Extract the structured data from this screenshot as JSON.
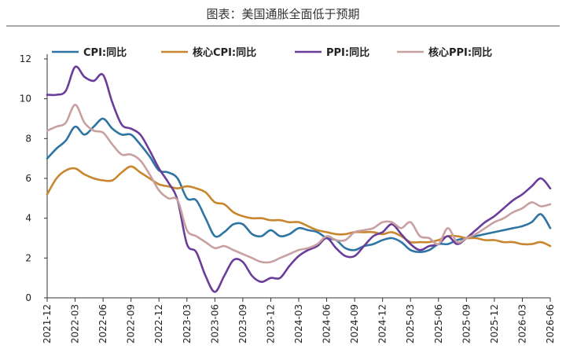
{
  "chart_data": {
    "type": "line",
    "title": "图表：美国通胀全面低于预期",
    "xlabel": "",
    "ylabel": "",
    "ylim": [
      0,
      12
    ],
    "yticks": [
      0,
      2,
      4,
      6,
      8,
      10,
      12
    ],
    "xlim": [
      "2021-12",
      "2026-06"
    ],
    "x_tick_labels": [
      "2021-12",
      "2022-03",
      "2022-06",
      "2022-09",
      "2022-12",
      "2023-03",
      "2023-06",
      "2023-09",
      "2023-12",
      "2024-03",
      "2024-06",
      "2024-09",
      "2024-12",
      "2025-03",
      "2025-06",
      "2025-09",
      "2025-12",
      "2026-03",
      "2026-06"
    ],
    "grid": false,
    "legend_position": "top",
    "series": [
      {
        "name": "CPI:同比",
        "color": "#2e75a3",
        "points": [
          [
            "2021-12",
            7.0
          ],
          [
            "2022-01",
            7.5
          ],
          [
            "2022-02",
            7.9
          ],
          [
            "2022-03",
            8.6
          ],
          [
            "2022-04",
            8.2
          ],
          [
            "2022-05",
            8.6
          ],
          [
            "2022-06",
            9.0
          ],
          [
            "2022-07",
            8.5
          ],
          [
            "2022-08",
            8.2
          ],
          [
            "2022-09",
            8.2
          ],
          [
            "2022-10",
            7.7
          ],
          [
            "2022-11",
            7.1
          ],
          [
            "2022-12",
            6.4
          ],
          [
            "2023-01",
            6.3
          ],
          [
            "2023-02",
            6.0
          ],
          [
            "2023-03",
            5.0
          ],
          [
            "2023-04",
            4.9
          ],
          [
            "2023-05",
            4.0
          ],
          [
            "2023-06",
            3.1
          ],
          [
            "2023-07",
            3.3
          ],
          [
            "2023-08",
            3.7
          ],
          [
            "2023-09",
            3.7
          ],
          [
            "2023-10",
            3.2
          ],
          [
            "2023-11",
            3.1
          ],
          [
            "2023-12",
            3.4
          ],
          [
            "2024-01",
            3.1
          ],
          [
            "2024-02",
            3.2
          ],
          [
            "2024-03",
            3.5
          ],
          [
            "2024-04",
            3.4
          ],
          [
            "2024-05",
            3.3
          ],
          [
            "2024-06",
            3.0
          ],
          [
            "2024-07",
            2.9
          ],
          [
            "2024-08",
            2.5
          ],
          [
            "2024-09",
            2.4
          ],
          [
            "2024-10",
            2.6
          ],
          [
            "2024-11",
            2.7
          ],
          [
            "2024-12",
            2.9
          ],
          [
            "2025-01",
            3.0
          ],
          [
            "2025-02",
            2.8
          ],
          [
            "2025-03",
            2.4
          ],
          [
            "2025-04",
            2.3
          ],
          [
            "2025-05",
            2.4
          ],
          [
            "2025-06",
            2.7
          ],
          [
            "2025-07",
            2.7
          ],
          [
            "2025-08",
            2.9
          ],
          [
            "2025-09",
            3.0
          ],
          [
            "2025-10",
            3.1
          ],
          [
            "2025-11",
            3.2
          ],
          [
            "2025-12",
            3.3
          ],
          [
            "2026-01",
            3.4
          ],
          [
            "2026-02",
            3.5
          ],
          [
            "2026-03",
            3.6
          ],
          [
            "2026-04",
            3.8
          ],
          [
            "2026-05",
            4.2
          ],
          [
            "2026-06",
            3.5
          ]
        ]
      },
      {
        "name": "核心CPI:同比",
        "color": "#c8862e",
        "points": [
          [
            "2021-12",
            5.2
          ],
          [
            "2022-01",
            6.0
          ],
          [
            "2022-02",
            6.4
          ],
          [
            "2022-03",
            6.5
          ],
          [
            "2022-04",
            6.2
          ],
          [
            "2022-05",
            6.0
          ],
          [
            "2022-06",
            5.9
          ],
          [
            "2022-07",
            5.9
          ],
          [
            "2022-08",
            6.3
          ],
          [
            "2022-09",
            6.6
          ],
          [
            "2022-10",
            6.3
          ],
          [
            "2022-11",
            6.0
          ],
          [
            "2022-12",
            5.7
          ],
          [
            "2023-01",
            5.6
          ],
          [
            "2023-02",
            5.5
          ],
          [
            "2023-03",
            5.6
          ],
          [
            "2023-04",
            5.5
          ],
          [
            "2023-05",
            5.3
          ],
          [
            "2023-06",
            4.8
          ],
          [
            "2023-07",
            4.7
          ],
          [
            "2023-08",
            4.3
          ],
          [
            "2023-09",
            4.1
          ],
          [
            "2023-10",
            4.0
          ],
          [
            "2023-11",
            4.0
          ],
          [
            "2023-12",
            3.9
          ],
          [
            "2024-01",
            3.9
          ],
          [
            "2024-02",
            3.8
          ],
          [
            "2024-03",
            3.8
          ],
          [
            "2024-04",
            3.6
          ],
          [
            "2024-05",
            3.4
          ],
          [
            "2024-06",
            3.3
          ],
          [
            "2024-07",
            3.2
          ],
          [
            "2024-08",
            3.2
          ],
          [
            "2024-09",
            3.3
          ],
          [
            "2024-10",
            3.3
          ],
          [
            "2024-11",
            3.3
          ],
          [
            "2024-12",
            3.2
          ],
          [
            "2025-01",
            3.3
          ],
          [
            "2025-02",
            3.1
          ],
          [
            "2025-03",
            2.8
          ],
          [
            "2025-04",
            2.8
          ],
          [
            "2025-05",
            2.8
          ],
          [
            "2025-06",
            2.9
          ],
          [
            "2025-07",
            3.1
          ],
          [
            "2025-08",
            3.1
          ],
          [
            "2025-09",
            3.0
          ],
          [
            "2025-10",
            3.0
          ],
          [
            "2025-11",
            2.9
          ],
          [
            "2025-12",
            2.9
          ],
          [
            "2026-01",
            2.8
          ],
          [
            "2026-02",
            2.8
          ],
          [
            "2026-03",
            2.7
          ],
          [
            "2026-04",
            2.7
          ],
          [
            "2026-05",
            2.8
          ],
          [
            "2026-06",
            2.6
          ]
        ]
      },
      {
        "name": "PPI:同比",
        "color": "#6a3d9a",
        "points": [
          [
            "2021-12",
            10.2
          ],
          [
            "2022-01",
            10.2
          ],
          [
            "2022-02",
            10.4
          ],
          [
            "2022-03",
            11.6
          ],
          [
            "2022-04",
            11.1
          ],
          [
            "2022-05",
            10.9
          ],
          [
            "2022-06",
            11.2
          ],
          [
            "2022-07",
            9.8
          ],
          [
            "2022-08",
            8.7
          ],
          [
            "2022-09",
            8.5
          ],
          [
            "2022-10",
            8.2
          ],
          [
            "2022-11",
            7.4
          ],
          [
            "2022-12",
            6.5
          ],
          [
            "2023-01",
            5.8
          ],
          [
            "2023-02",
            4.9
          ],
          [
            "2023-03",
            2.7
          ],
          [
            "2023-04",
            2.3
          ],
          [
            "2023-05",
            1.1
          ],
          [
            "2023-06",
            0.3
          ],
          [
            "2023-07",
            1.1
          ],
          [
            "2023-08",
            1.9
          ],
          [
            "2023-09",
            1.8
          ],
          [
            "2023-10",
            1.1
          ],
          [
            "2023-11",
            0.8
          ],
          [
            "2023-12",
            1.0
          ],
          [
            "2024-01",
            1.0
          ],
          [
            "2024-02",
            1.6
          ],
          [
            "2024-03",
            2.1
          ],
          [
            "2024-04",
            2.4
          ],
          [
            "2024-05",
            2.6
          ],
          [
            "2024-06",
            3.0
          ],
          [
            "2024-07",
            2.5
          ],
          [
            "2024-08",
            2.1
          ],
          [
            "2024-09",
            2.1
          ],
          [
            "2024-10",
            2.6
          ],
          [
            "2024-11",
            3.1
          ],
          [
            "2024-12",
            3.3
          ],
          [
            "2025-01",
            3.7
          ],
          [
            "2025-02",
            3.2
          ],
          [
            "2025-03",
            2.7
          ],
          [
            "2025-04",
            2.4
          ],
          [
            "2025-05",
            2.6
          ],
          [
            "2025-06",
            2.7
          ],
          [
            "2025-07",
            3.1
          ],
          [
            "2025-08",
            2.7
          ],
          [
            "2025-09",
            3.0
          ],
          [
            "2025-10",
            3.4
          ],
          [
            "2025-11",
            3.8
          ],
          [
            "2025-12",
            4.1
          ],
          [
            "2026-01",
            4.5
          ],
          [
            "2026-02",
            4.9
          ],
          [
            "2026-03",
            5.2
          ],
          [
            "2026-04",
            5.6
          ],
          [
            "2026-05",
            6.0
          ],
          [
            "2026-06",
            5.5
          ]
        ]
      },
      {
        "name": "核心PPI:同比",
        "color": "#c9a0a0",
        "points": [
          [
            "2021-12",
            8.4
          ],
          [
            "2022-01",
            8.6
          ],
          [
            "2022-02",
            8.8
          ],
          [
            "2022-03",
            9.7
          ],
          [
            "2022-04",
            8.8
          ],
          [
            "2022-05",
            8.4
          ],
          [
            "2022-06",
            8.3
          ],
          [
            "2022-07",
            7.7
          ],
          [
            "2022-08",
            7.2
          ],
          [
            "2022-09",
            7.2
          ],
          [
            "2022-10",
            6.9
          ],
          [
            "2022-11",
            6.2
          ],
          [
            "2022-12",
            5.4
          ],
          [
            "2023-01",
            5.0
          ],
          [
            "2023-02",
            4.9
          ],
          [
            "2023-03",
            3.4
          ],
          [
            "2023-04",
            3.1
          ],
          [
            "2023-05",
            2.8
          ],
          [
            "2023-06",
            2.5
          ],
          [
            "2023-07",
            2.6
          ],
          [
            "2023-08",
            2.4
          ],
          [
            "2023-09",
            2.2
          ],
          [
            "2023-10",
            2.0
          ],
          [
            "2023-11",
            1.8
          ],
          [
            "2023-12",
            1.8
          ],
          [
            "2024-01",
            2.0
          ],
          [
            "2024-02",
            2.2
          ],
          [
            "2024-03",
            2.4
          ],
          [
            "2024-04",
            2.5
          ],
          [
            "2024-05",
            2.7
          ],
          [
            "2024-06",
            3.1
          ],
          [
            "2024-07",
            2.9
          ],
          [
            "2024-08",
            2.9
          ],
          [
            "2024-09",
            3.3
          ],
          [
            "2024-10",
            3.4
          ],
          [
            "2024-11",
            3.5
          ],
          [
            "2024-12",
            3.8
          ],
          [
            "2025-01",
            3.8
          ],
          [
            "2025-02",
            3.5
          ],
          [
            "2025-03",
            3.8
          ],
          [
            "2025-04",
            3.1
          ],
          [
            "2025-05",
            3.0
          ],
          [
            "2025-06",
            2.7
          ],
          [
            "2025-07",
            3.5
          ],
          [
            "2025-08",
            2.8
          ],
          [
            "2025-09",
            3.0
          ],
          [
            "2025-10",
            3.2
          ],
          [
            "2025-11",
            3.5
          ],
          [
            "2025-12",
            3.8
          ],
          [
            "2026-01",
            4.0
          ],
          [
            "2026-02",
            4.3
          ],
          [
            "2026-03",
            4.5
          ],
          [
            "2026-04",
            4.8
          ],
          [
            "2026-05",
            4.6
          ],
          [
            "2026-06",
            4.7
          ]
        ]
      }
    ]
  }
}
